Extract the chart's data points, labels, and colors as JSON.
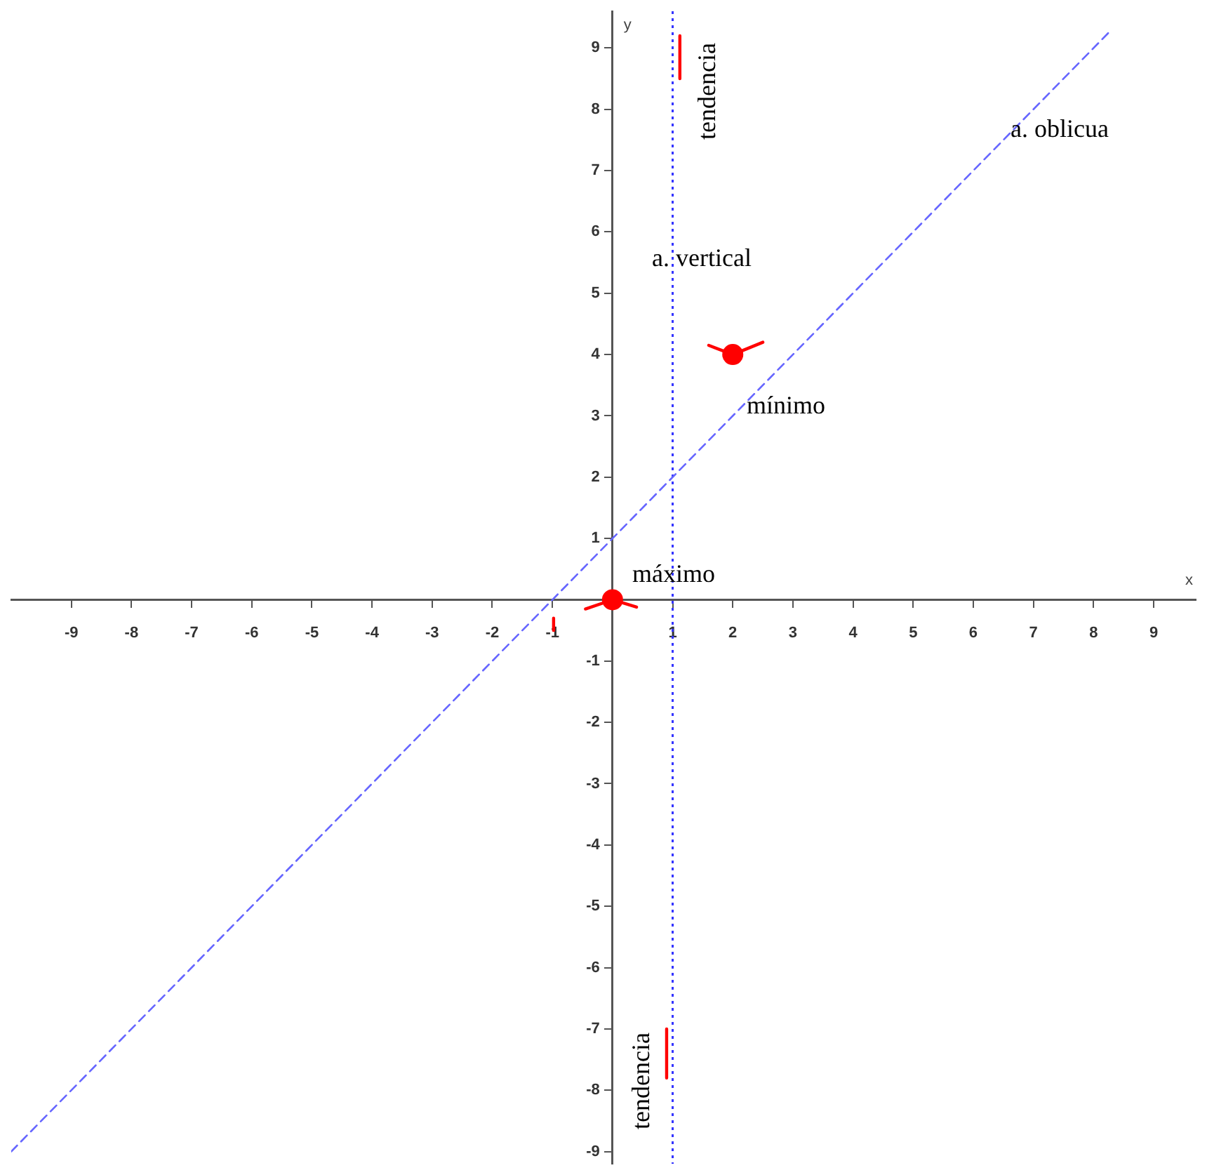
{
  "chart_data": {
    "type": "line",
    "xlabel": "x",
    "ylabel": "y",
    "xlim": [
      -10,
      9.7
    ],
    "ylim": [
      -9.2,
      9.6
    ],
    "xticks": [
      -9,
      -8,
      -7,
      -6,
      -5,
      -4,
      -3,
      -2,
      -1,
      1,
      2,
      3,
      4,
      5,
      6,
      7,
      8,
      9
    ],
    "yticks": [
      -9,
      -8,
      -7,
      -6,
      -5,
      -4,
      -3,
      -2,
      -1,
      1,
      2,
      3,
      4,
      5,
      6,
      7,
      8,
      9
    ],
    "grid": false,
    "legend": false,
    "series": [
      {
        "type": "line",
        "color": "#6666ff",
        "line_style": "dashed",
        "marker": "none",
        "x": [
          -10,
          8.3
        ],
        "values": [
          -9,
          9.3
        ]
      },
      {
        "type": "scatter",
        "color": "#ff0000",
        "marker": "circle",
        "x": [
          0,
          2
        ],
        "values": [
          0,
          4
        ]
      },
      {
        "type": "line",
        "color": "#ff0000",
        "line_style": "solid",
        "marker": "none",
        "x": [
          -0.45,
          0,
          0.4
        ],
        "values": [
          -0.15,
          0,
          -0.12
        ]
      },
      {
        "type": "line",
        "color": "#ff0000",
        "line_style": "solid",
        "marker": "none",
        "x": [
          1.6,
          2,
          2.5
        ],
        "values": [
          4.15,
          4,
          4.2
        ]
      },
      {
        "type": "line",
        "color": "#ff0000",
        "line_style": "solid",
        "marker": "none",
        "x": [
          1.12,
          1.12
        ],
        "values": [
          9.2,
          8.5
        ]
      },
      {
        "type": "line",
        "color": "#ff0000",
        "line_style": "solid",
        "marker": "none",
        "x": [
          0.9,
          0.9
        ],
        "values": [
          -7,
          -7.8
        ]
      },
      {
        "type": "line",
        "color": "#ff0000",
        "line_style": "solid",
        "marker": "none",
        "x": [
          -0.98,
          -0.98
        ],
        "values": [
          -0.3,
          -0.5
        ]
      }
    ],
    "ref_lines": [
      {
        "axis": "x",
        "value": 1,
        "color": "#3333ff",
        "line_style": "dotted"
      }
    ],
    "annotations": [
      "a. oblicua",
      "a. vertical",
      "mínimo",
      "máximo",
      "tendencia",
      "tendencia"
    ]
  }
}
